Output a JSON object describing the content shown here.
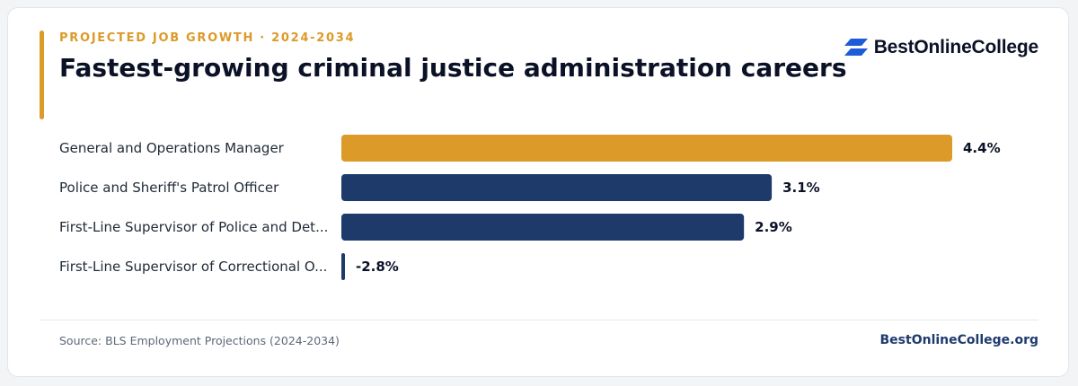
{
  "header": {
    "eyebrow": "PROJECTED JOB GROWTH · 2024-2034",
    "title": "Fastest-growing criminal justice administration careers"
  },
  "brand": {
    "name": "BestOnlineCollege",
    "icon": "brand-logo-icon"
  },
  "colors": {
    "highlight": "#dc9a28",
    "bar": "#1e3a6b",
    "accent": "#dc9a28"
  },
  "chart_data": {
    "type": "bar",
    "orientation": "horizontal",
    "categories": [
      "General and Operations Manager",
      "Police and Sheriff's Patrol Officer",
      "First-Line Supervisor of Police and Det...",
      "First-Line Supervisor of Correctional O..."
    ],
    "values": [
      4.4,
      3.1,
      2.9,
      -2.8
    ],
    "value_labels": [
      "4.4%",
      "3.1%",
      "2.9%",
      "-2.8%"
    ],
    "highlight_index": 0,
    "xlim": [
      0,
      4.4
    ],
    "grid": false,
    "legend": "none"
  },
  "footer": {
    "source": "Source: BLS Employment Projections (2024-2034)",
    "link": "BestOnlineCollege.org"
  }
}
